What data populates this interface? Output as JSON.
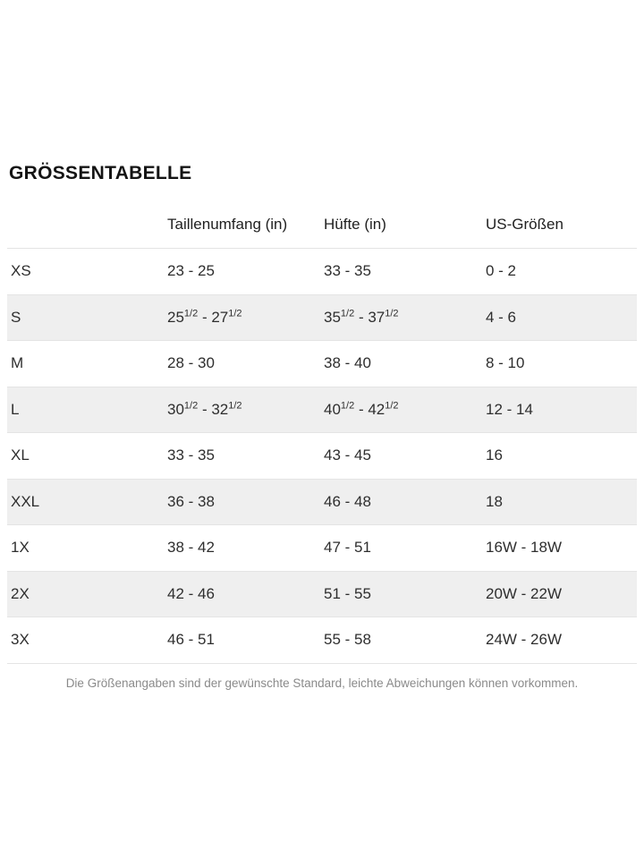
{
  "page": {
    "title": "GRÖSSENTABELLE",
    "footnote": "Die Größenangaben sind der gewünschte Standard, leichte Abweichungen können vorkommen."
  },
  "table": {
    "headers": {
      "size": "",
      "waist": "Taillenumfang (in)",
      "hip": "Hüfte (in)",
      "us": "US-Größen"
    },
    "rows": [
      {
        "size": "XS",
        "waist": "23 - 25",
        "hip": "33 - 35",
        "us": "0 - 2"
      },
      {
        "size": "S",
        "waist": "25^1/2^ - 27^1/2^",
        "hip": "35^1/2^ - 37^1/2^",
        "us": "4 - 6"
      },
      {
        "size": "M",
        "waist": "28 - 30",
        "hip": "38 - 40",
        "us": "8 - 10"
      },
      {
        "size": "L",
        "waist": "30^1/2^ - 32^1/2^",
        "hip": "40^1/2^ - 42^1/2^",
        "us": "12 - 14"
      },
      {
        "size": "XL",
        "waist": "33 - 35",
        "hip": "43 - 45",
        "us": "16"
      },
      {
        "size": "XXL",
        "waist": "36 - 38",
        "hip": "46 - 48",
        "us": "18"
      },
      {
        "size": "1X",
        "waist": "38 - 42",
        "hip": "47 - 51",
        "us": "16W - 18W"
      },
      {
        "size": "2X",
        "waist": "42 - 46",
        "hip": "51 - 55",
        "us": "20W - 22W"
      },
      {
        "size": "3X",
        "waist": "46 - 51",
        "hip": "55 - 58",
        "us": "24W - 26W"
      }
    ]
  },
  "colors": {
    "stripe": "#efefef",
    "row_border": "#e4e4e4",
    "text": "#2e2e2e",
    "muted_text": "#8a8a8a"
  }
}
